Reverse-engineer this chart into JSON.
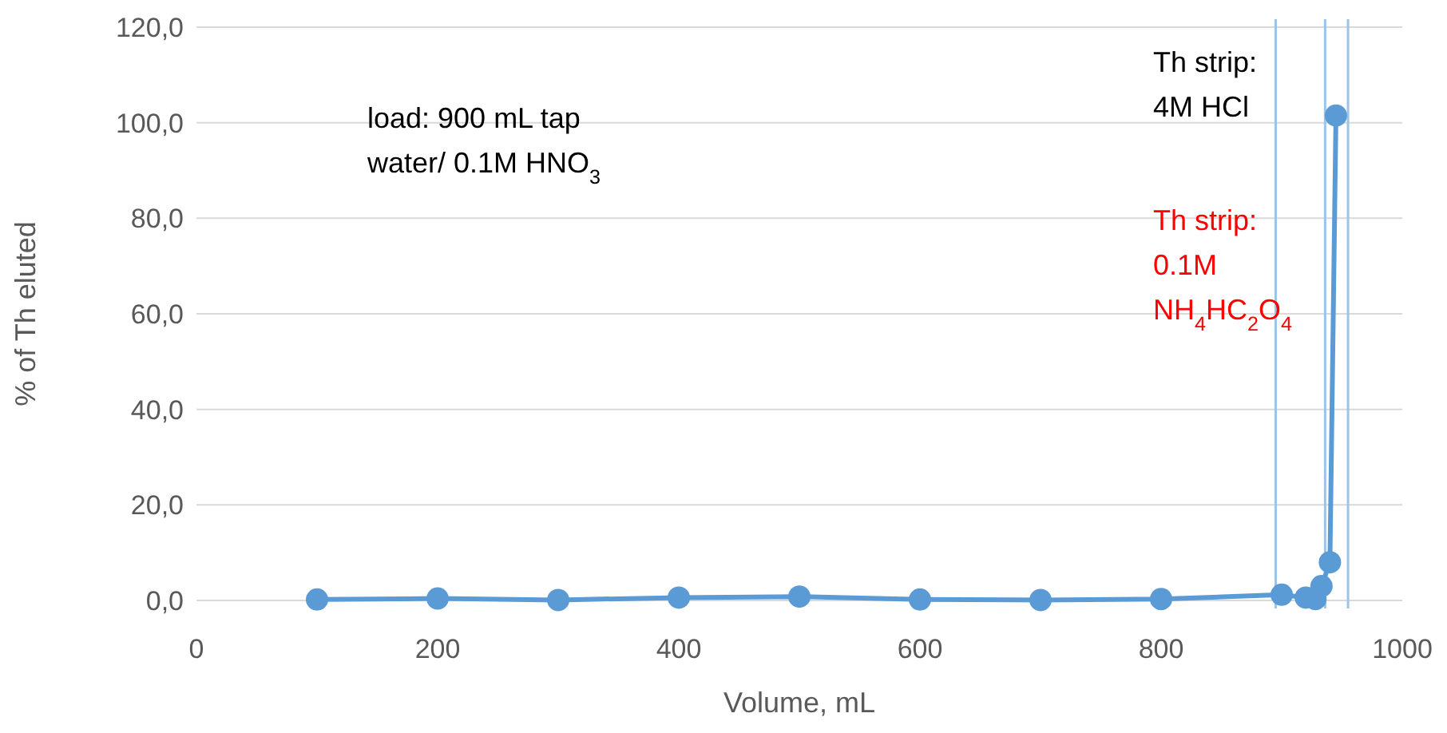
{
  "chart_data": {
    "type": "line",
    "xlabel": "Volume, mL",
    "ylabel": "% of Th eluted",
    "x": [
      100,
      200,
      300,
      400,
      500,
      600,
      700,
      800,
      900,
      920,
      928,
      933,
      940,
      945
    ],
    "series": [
      {
        "color": "#5b9bd5",
        "values": [
          0.2,
          0.4,
          0.1,
          0.6,
          0.8,
          0.2,
          0.1,
          0.3,
          1.2,
          0.6,
          0.3,
          3.0,
          8.0,
          101.5
        ]
      }
    ],
    "xlim": [
      0,
      1000
    ],
    "xticks": [
      0,
      200,
      400,
      600,
      800,
      1000
    ],
    "ylim": [
      0,
      120
    ],
    "yticks": [
      {
        "value": 0,
        "label": "0,0"
      },
      {
        "value": 20,
        "label": "20,0"
      },
      {
        "value": 40,
        "label": "40,0"
      },
      {
        "value": 60,
        "label": "60,0"
      },
      {
        "value": 80,
        "label": "80,0"
      },
      {
        "value": 100,
        "label": "100,0"
      },
      {
        "value": 120,
        "label": "120,0"
      }
    ],
    "grid": "y",
    "marker": "circle",
    "line_style": "solid",
    "ref_lines": [
      {
        "axis": "x",
        "value": 895,
        "color": "#9dc3e6"
      },
      {
        "axis": "x",
        "value": 936,
        "color": "#9dc3e6"
      },
      {
        "axis": "x",
        "value": 955,
        "color": "#9dc3e6"
      }
    ],
    "annotations": [
      "load: 900 mL tap\nwater/ 0.1M HNO$_{3}$",
      "Th strip:\n4M HCl",
      "Th strip:\n0.1M\nNH$_{4}$HC$_{2}$O$_{4}$"
    ]
  }
}
